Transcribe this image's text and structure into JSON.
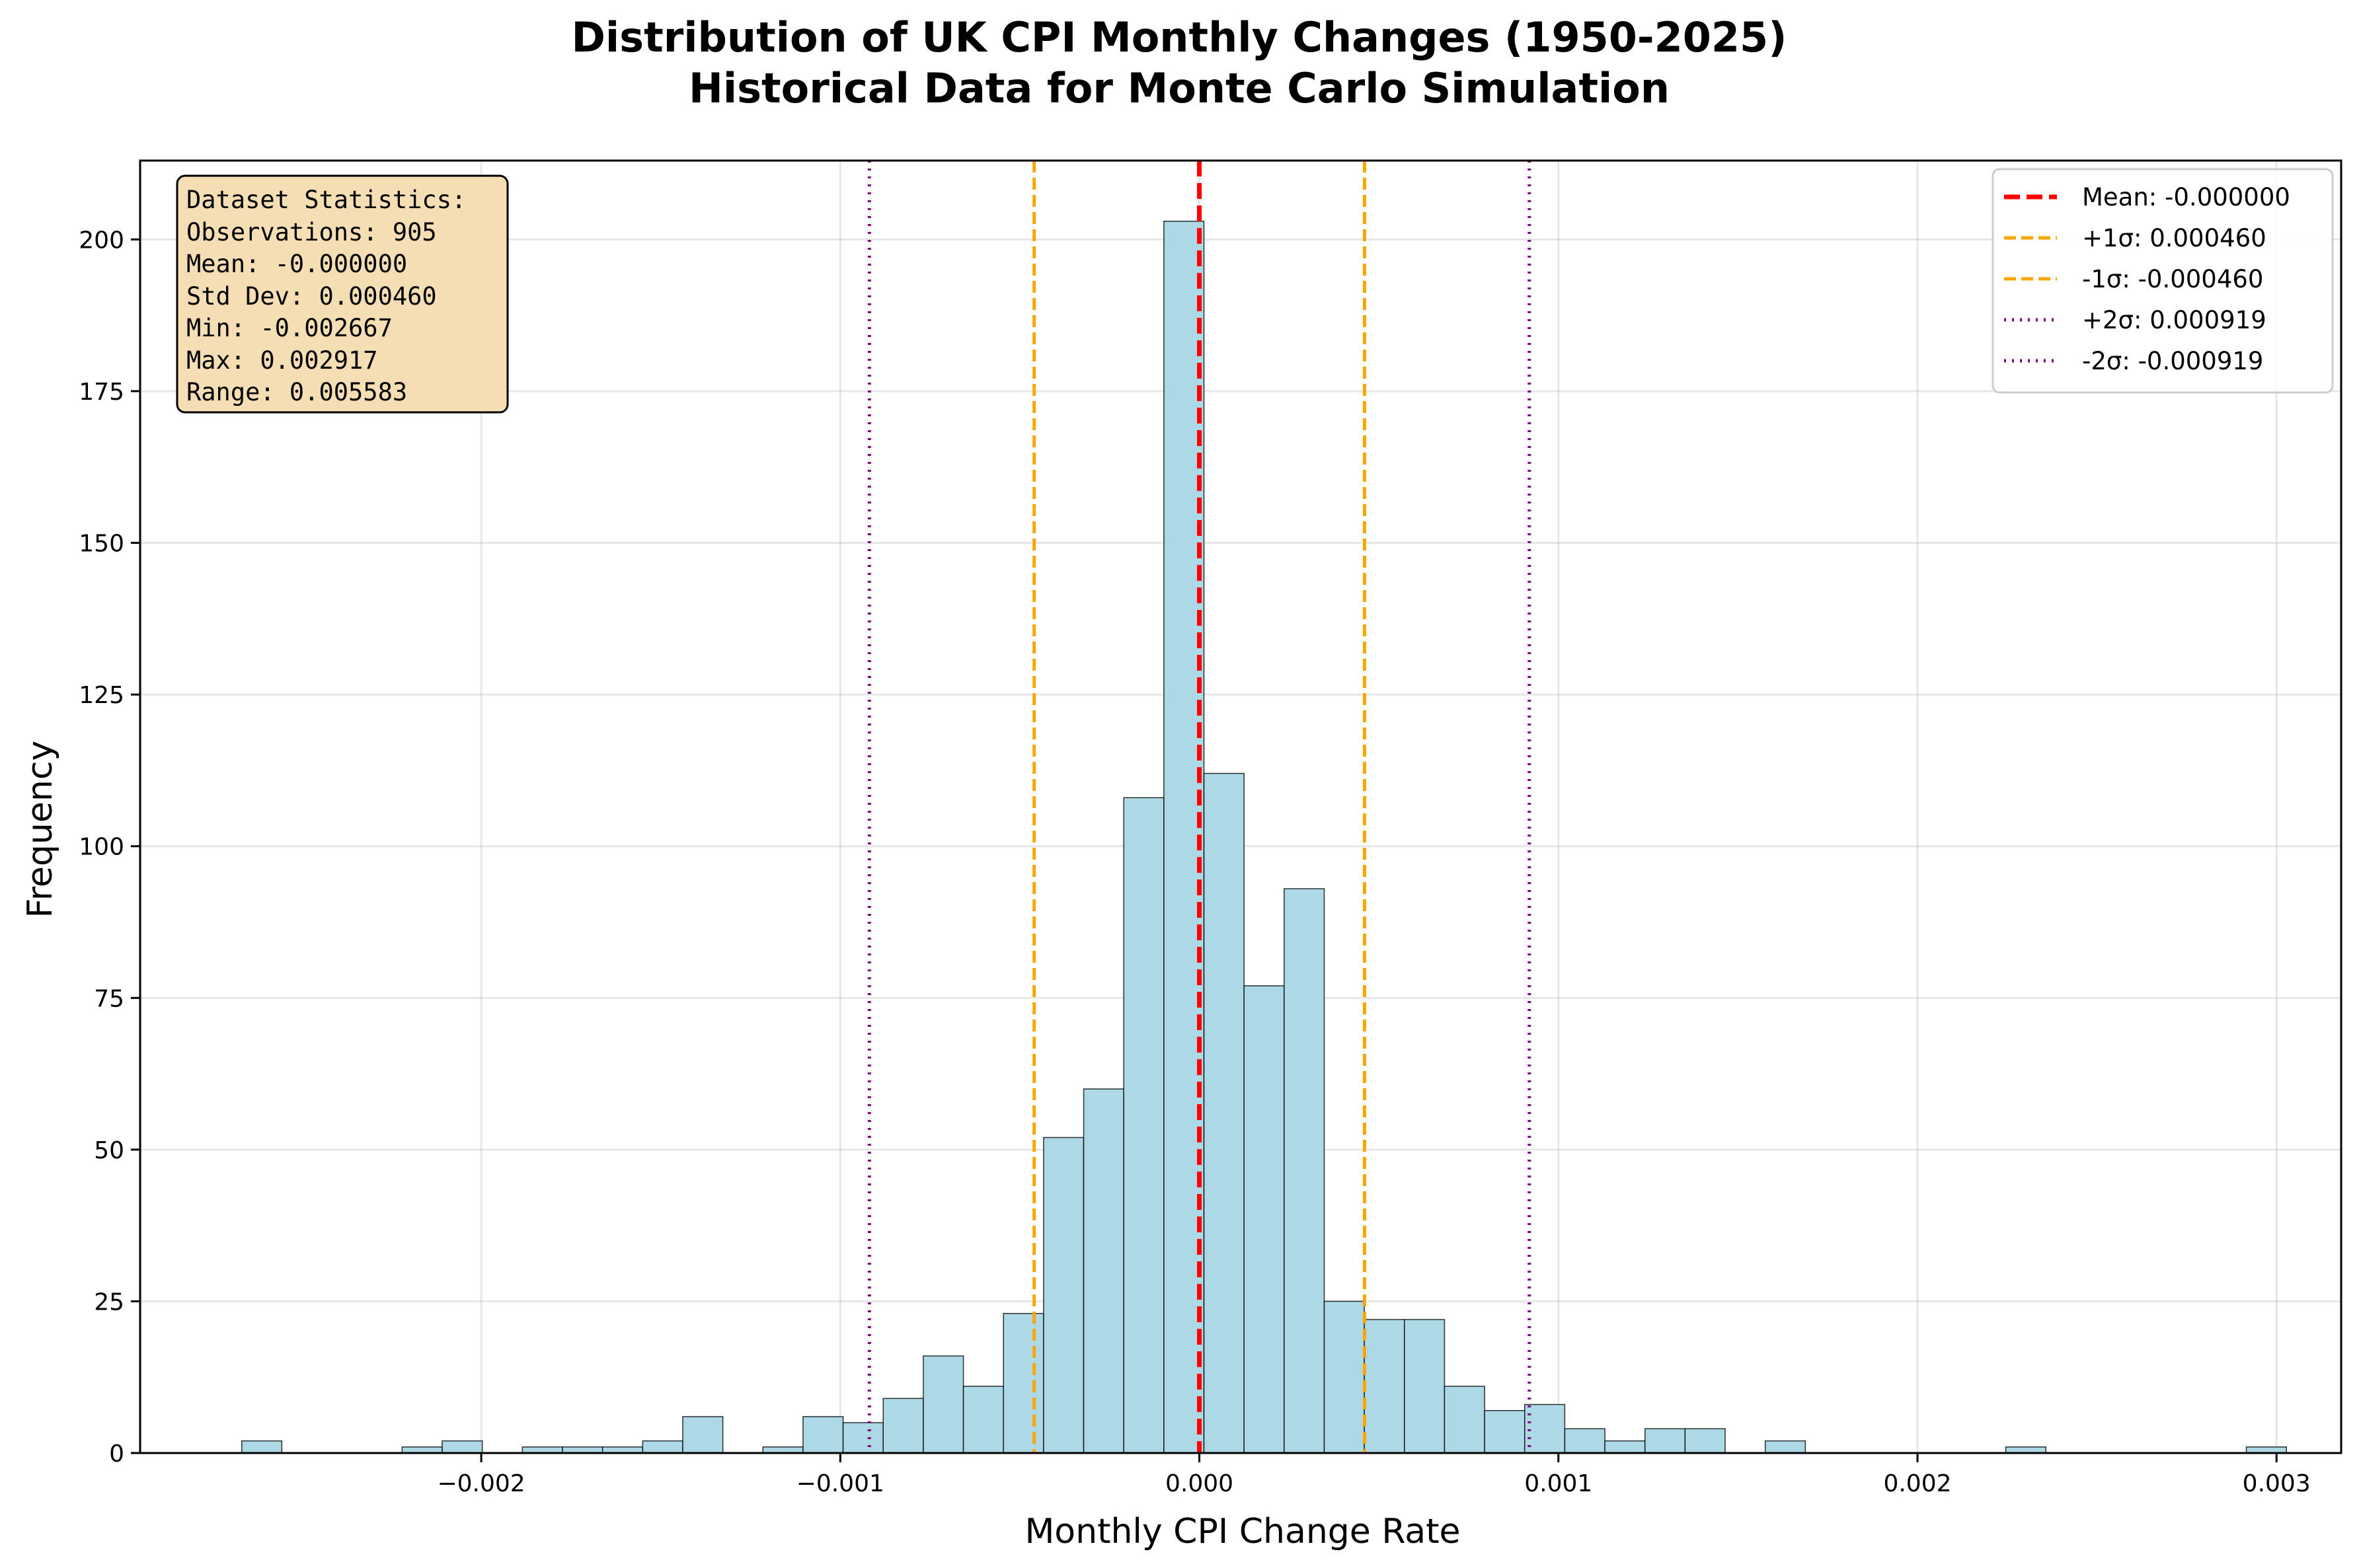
{
  "chart_data": {
    "type": "bar",
    "title": "Distribution of UK CPI Monthly Changes (1950-2025)",
    "subtitle": "Historical Data for Monte Carlo Simulation",
    "xlabel": "Monthly CPI Change Rate",
    "ylabel": "Frequency",
    "xlim": [
      -0.00295,
      0.00318
    ],
    "ylim": [
      0,
      213
    ],
    "grid": true,
    "x_ticks": [
      {
        "value": -0.002,
        "label": "−0.002"
      },
      {
        "value": -0.001,
        "label": "−0.001"
      },
      {
        "value": 0.0,
        "label": "0.000"
      },
      {
        "value": 0.001,
        "label": "0.001"
      },
      {
        "value": 0.002,
        "label": "0.002"
      },
      {
        "value": 0.003,
        "label": "0.003"
      }
    ],
    "y_ticks": [
      {
        "value": 0,
        "label": "0"
      },
      {
        "value": 25,
        "label": "25"
      },
      {
        "value": 50,
        "label": "50"
      },
      {
        "value": 75,
        "label": "75"
      },
      {
        "value": 100,
        "label": "100"
      },
      {
        "value": 125,
        "label": "125"
      },
      {
        "value": 150,
        "label": "150"
      },
      {
        "value": 175,
        "label": "175"
      },
      {
        "value": 200,
        "label": "200"
      }
    ],
    "bar_color": "#add8e6",
    "bar_edge_color": "#000000",
    "bin_start": -0.002667,
    "bin_width": 0.00011166,
    "counts": [
      2,
      0,
      0,
      0,
      1,
      2,
      0,
      1,
      1,
      1,
      2,
      6,
      0,
      1,
      6,
      5,
      9,
      16,
      11,
      23,
      52,
      60,
      108,
      203,
      112,
      77,
      93,
      25,
      22,
      22,
      11,
      7,
      8,
      4,
      2,
      4,
      4,
      0,
      2,
      0,
      0,
      0,
      0,
      0,
      1,
      0,
      0,
      0,
      0,
      0,
      1
    ],
    "ref_lines": [
      {
        "label": "Mean: -0.000000",
        "value": 0.0,
        "color": "#ff0000",
        "style": "dashed-thick"
      },
      {
        "label": "+1σ: 0.000460",
        "value": 0.00046,
        "color": "#ffa500",
        "style": "dashed"
      },
      {
        "label": "-1σ: -0.000460",
        "value": -0.00046,
        "color": "#ffa500",
        "style": "dashed"
      },
      {
        "label": "+2σ: 0.000919",
        "value": 0.000919,
        "color": "#800080",
        "style": "dotted"
      },
      {
        "label": "-2σ: -0.000919",
        "value": -0.000919,
        "color": "#800080",
        "style": "dotted"
      }
    ],
    "legend_position": "top-right",
    "stats_box": {
      "lines": [
        "Dataset Statistics:",
        "Observations: 905",
        "Mean: -0.000000",
        "Std Dev: 0.000460",
        "Min: -0.002667",
        "Max: 0.002917",
        "Range: 0.005583"
      ],
      "background": "#f5deb3",
      "position": "top-left"
    }
  }
}
